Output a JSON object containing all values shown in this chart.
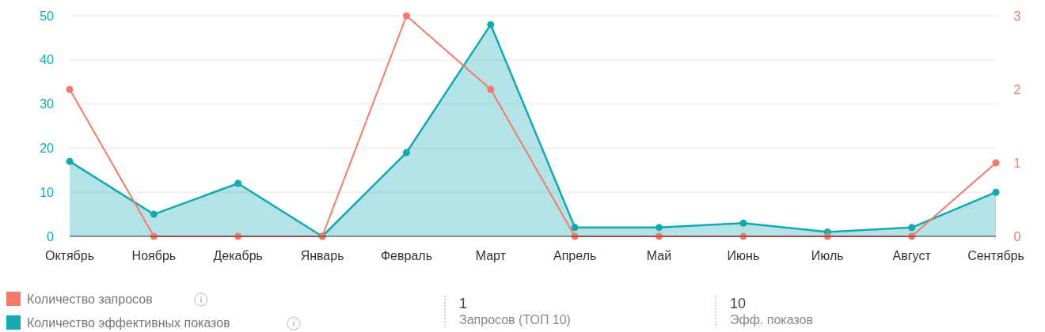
{
  "chart_data": {
    "type": "line",
    "categories": [
      "Октябрь",
      "Ноябрь",
      "Декабрь",
      "Январь",
      "Февраль",
      "Март",
      "Апрель",
      "Май",
      "Июнь",
      "Июль",
      "Август",
      "Сентябрь"
    ],
    "series": [
      {
        "name": "Количество запросов",
        "color": "#f47a6a",
        "axis": "y2",
        "values": [
          2,
          0,
          0,
          0,
          3,
          2,
          0,
          0,
          0,
          0,
          0,
          1
        ]
      },
      {
        "name": "Количество эффективных показов",
        "color": "#13a9b1",
        "type": "area",
        "values": [
          17,
          5,
          12,
          0,
          19,
          48,
          2,
          2,
          3,
          1,
          2,
          10
        ]
      }
    ],
    "ylim": [
      0,
      50
    ],
    "yticks": [
      0,
      10,
      20,
      30,
      40,
      50
    ],
    "y2lim": [
      0,
      3
    ],
    "y2ticks": [
      0,
      1,
      2,
      3
    ],
    "grid": "y",
    "legend": "bottom left",
    "marker": "circle",
    "annotations": [
      "1",
      "Запросов (ТОП 10)",
      "10",
      "Эфф. показов"
    ]
  }
}
